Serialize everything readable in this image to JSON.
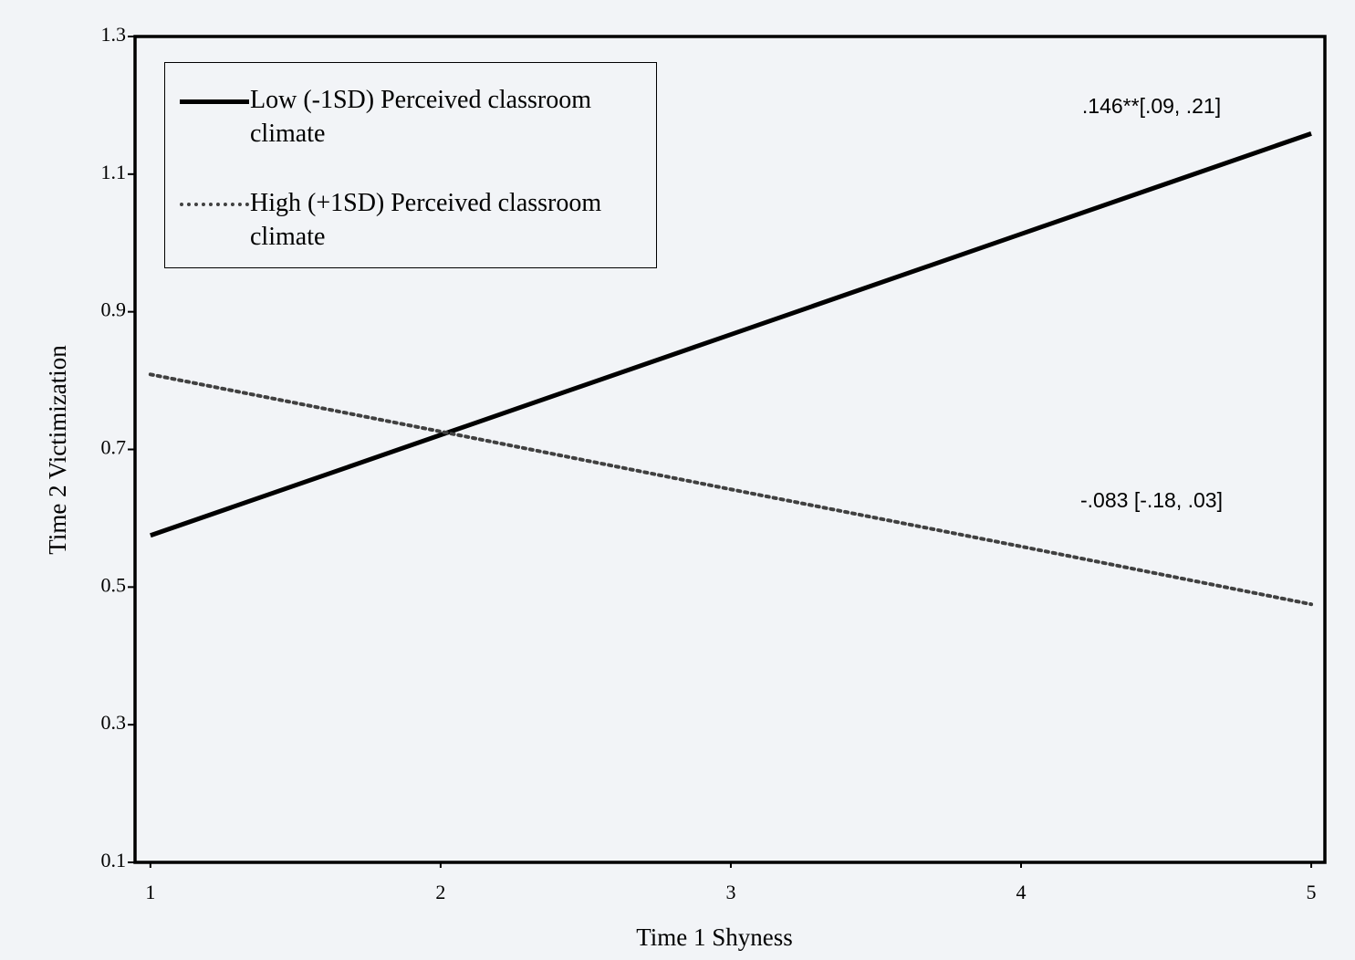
{
  "chart_data": {
    "type": "line",
    "x_label": "Time 1 Shyness",
    "y_label": "Time 2 Victimization",
    "x": [
      1,
      2,
      3,
      4,
      5
    ],
    "series": [
      {
        "name": "Low (-1SD) Perceived classroom climate",
        "color": "#000000",
        "dash": "solid",
        "values": [
          0.575,
          0.721,
          0.867,
          1.013,
          1.159
        ]
      },
      {
        "name": "High (+1SD) Perceived classroom climate",
        "color": "#404040",
        "dash": "dotted",
        "values": [
          0.809,
          0.726,
          0.642,
          0.559,
          0.475
        ]
      }
    ],
    "annotations": [
      ".146**[.09, .21]",
      "-.083 [-.18, .03]"
    ],
    "xlim": [
      0.947,
      5.047
    ],
    "ylim": [
      0.1,
      1.3
    ],
    "xticks": [
      1,
      2,
      3,
      4,
      5
    ],
    "yticks": [
      0.1,
      0.3,
      0.5,
      0.7,
      0.9,
      1.1,
      1.3
    ],
    "legend": "upper left",
    "grid": false
  }
}
